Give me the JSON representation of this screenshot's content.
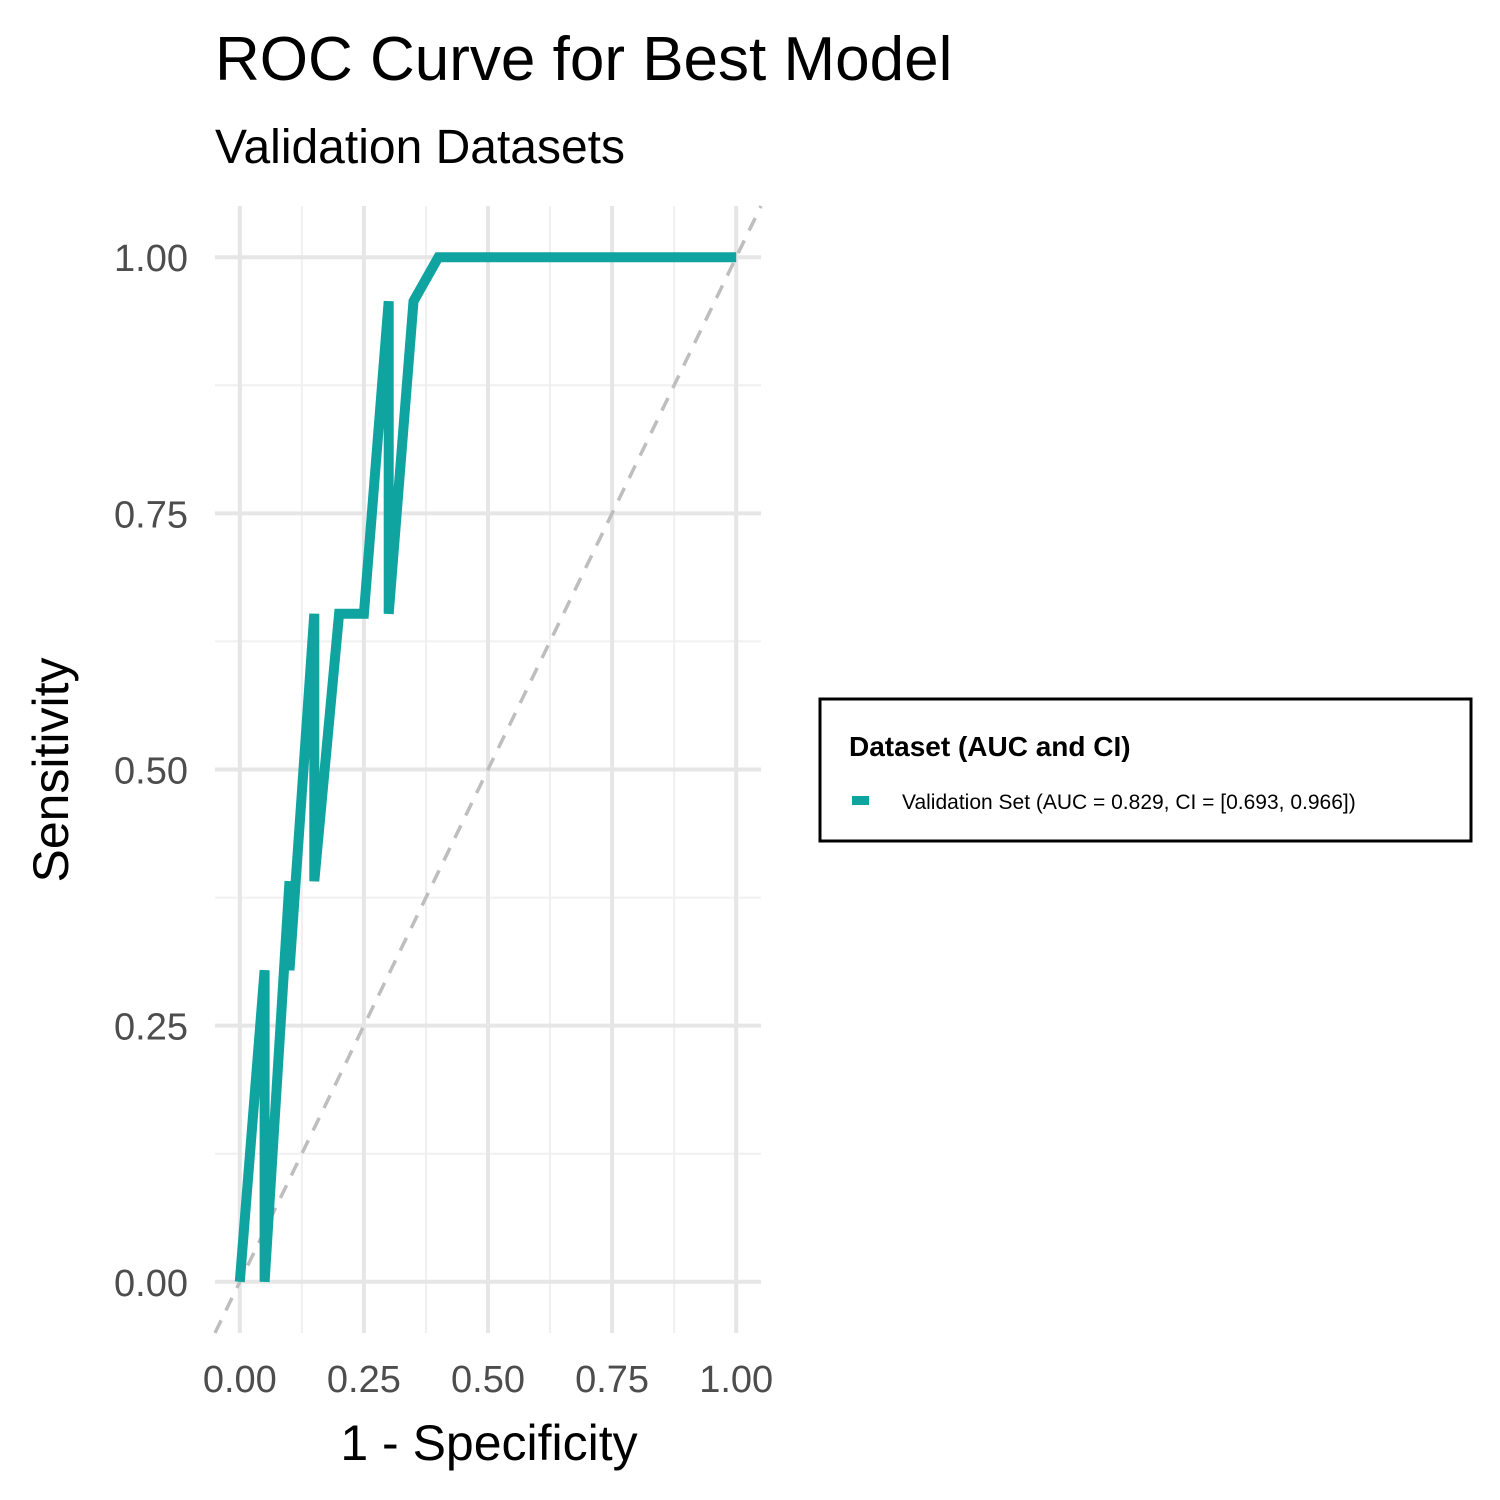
{
  "chart_data": {
    "type": "line",
    "title": "ROC Curve for Best Model",
    "subtitle": "Validation Datasets",
    "xlabel": "1 - Specificity",
    "ylabel": "Sensitivity",
    "xlim": [
      -0.05,
      1.05
    ],
    "ylim": [
      -0.05,
      1.05
    ],
    "x_ticks": [
      0,
      0.25,
      0.5,
      0.75,
      1
    ],
    "x_tick_labels": [
      "0.00",
      "0.25",
      "0.50",
      "0.75",
      "1.00"
    ],
    "y_ticks": [
      0,
      0.25,
      0.5,
      0.75,
      1
    ],
    "y_tick_labels": [
      "0.00",
      "0.25",
      "0.50",
      "0.75",
      "1.00"
    ],
    "grid": true,
    "legend": {
      "title": "Dataset (AUC and CI)",
      "placement": "right"
    },
    "reference_line": {
      "x": [
        -0.05,
        1.05
      ],
      "y": [
        -0.05,
        1.05
      ],
      "style": "dashed",
      "color": "#bebebe"
    },
    "series": [
      {
        "name": "Validation Set (AUC = 0.829, CI = [0.693, 0.966])",
        "color": "#0fa4a0",
        "x": [
          0.0,
          0.05,
          0.05,
          0.1,
          0.1,
          0.15,
          0.15,
          0.2,
          0.25,
          0.3,
          0.3,
          0.35,
          0.4,
          0.45,
          0.5,
          0.55,
          0.6,
          0.65,
          0.7,
          0.75,
          0.8,
          0.85,
          0.9,
          0.95,
          1.0
        ],
        "y": [
          0.0,
          0.304,
          0.0,
          0.391,
          0.304,
          0.652,
          0.391,
          0.652,
          0.652,
          0.957,
          0.652,
          0.957,
          1.0,
          1.0,
          1.0,
          1.0,
          1.0,
          1.0,
          1.0,
          1.0,
          1.0,
          1.0,
          1.0,
          1.0,
          1.0
        ]
      }
    ]
  }
}
